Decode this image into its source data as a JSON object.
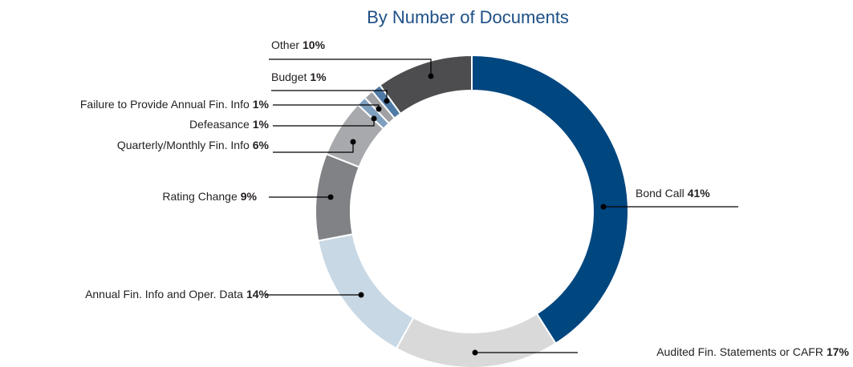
{
  "chart_data": {
    "type": "donut",
    "title": "By Number of Documents",
    "categories": [
      "Bond Call",
      "Audited Fin. Statements or CAFR",
      "Annual Fin. Info and Oper. Data",
      "Rating Change",
      "Quarterly/Monthly Fin. Info",
      "Defeasance",
      "Failure to Provide Annual Fin. Info",
      "Budget",
      "Other"
    ],
    "values": [
      41,
      17,
      14,
      9,
      6,
      1,
      1,
      1,
      10
    ],
    "value_labels": [
      "41%",
      "17%",
      "14%",
      "9%",
      "6%",
      "1%",
      "1%",
      "1%",
      "10%"
    ],
    "colors": [
      "#00467f",
      "#d9d9d9",
      "#c8d8e5",
      "#808285",
      "#a7a9ac",
      "#7f9fbf",
      "#9fa1a4",
      "#4f7aa6",
      "#4d4d4f"
    ]
  }
}
